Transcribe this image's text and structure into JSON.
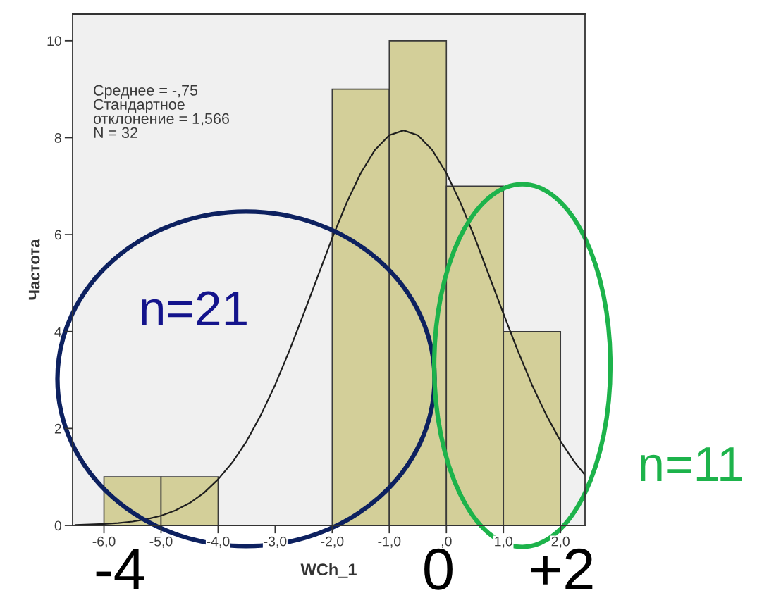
{
  "chart_data": {
    "type": "histogram",
    "xlabel": "WCh_1",
    "ylabel": "Частота",
    "bins": [
      -6,
      -5,
      -4,
      -3,
      -2,
      -1,
      0,
      1,
      2
    ],
    "series": [
      {
        "color": "#d3cf99",
        "values": [
          1,
          1,
          0,
          0,
          9,
          10,
          7,
          4
        ]
      },
      {
        "type": "line",
        "color": "#1e1e1e",
        "x": [
          -6.5,
          -6.25,
          -6.0,
          -5.75,
          -5.5,
          -5.25,
          -5.0,
          -4.75,
          -4.5,
          -4.25,
          -4.0,
          -3.75,
          -3.5,
          -3.25,
          -3.0,
          -2.75,
          -2.5,
          -2.25,
          -2.0,
          -1.75,
          -1.5,
          -1.25,
          -1.0,
          -0.75,
          -0.5,
          -0.25,
          0.0,
          0.25,
          0.5,
          0.75,
          1.0,
          1.25,
          1.5,
          1.75,
          2.0,
          2.25,
          2.43
        ],
        "values": [
          0.01,
          0.02,
          0.03,
          0.05,
          0.08,
          0.13,
          0.2,
          0.31,
          0.46,
          0.67,
          0.95,
          1.3,
          1.74,
          2.28,
          2.9,
          3.61,
          4.37,
          5.15,
          5.93,
          6.65,
          7.27,
          7.75,
          8.05,
          8.15,
          8.05,
          7.75,
          7.27,
          6.65,
          5.93,
          5.15,
          4.37,
          3.61,
          2.9,
          2.28,
          1.74,
          1.3,
          1.04
        ]
      }
    ],
    "xlim": [
      -6.55,
      2.43
    ],
    "ylim": [
      0,
      10.55
    ],
    "xticks": [
      {
        "value": -6,
        "label": "-6,0"
      },
      {
        "value": -5,
        "label": "-5,0"
      },
      {
        "value": -4,
        "label": "-4,0"
      },
      {
        "value": -3,
        "label": "-3,0"
      },
      {
        "value": -2,
        "label": "-2,0"
      },
      {
        "value": -1,
        "label": "-1,0"
      },
      {
        "value": 0,
        "label": ",0"
      },
      {
        "value": 1,
        "label": "1,0"
      },
      {
        "value": 2,
        "label": "2,0"
      }
    ],
    "yticks": [
      0,
      2,
      4,
      6,
      8,
      10
    ],
    "grid": false,
    "legend": false,
    "annotations": [
      "Среднее = -,75\nСтандартное\nотклонение = 1,566\nN = 32",
      "n=21",
      "n=11",
      "-4",
      "0",
      "+2"
    ]
  }
}
